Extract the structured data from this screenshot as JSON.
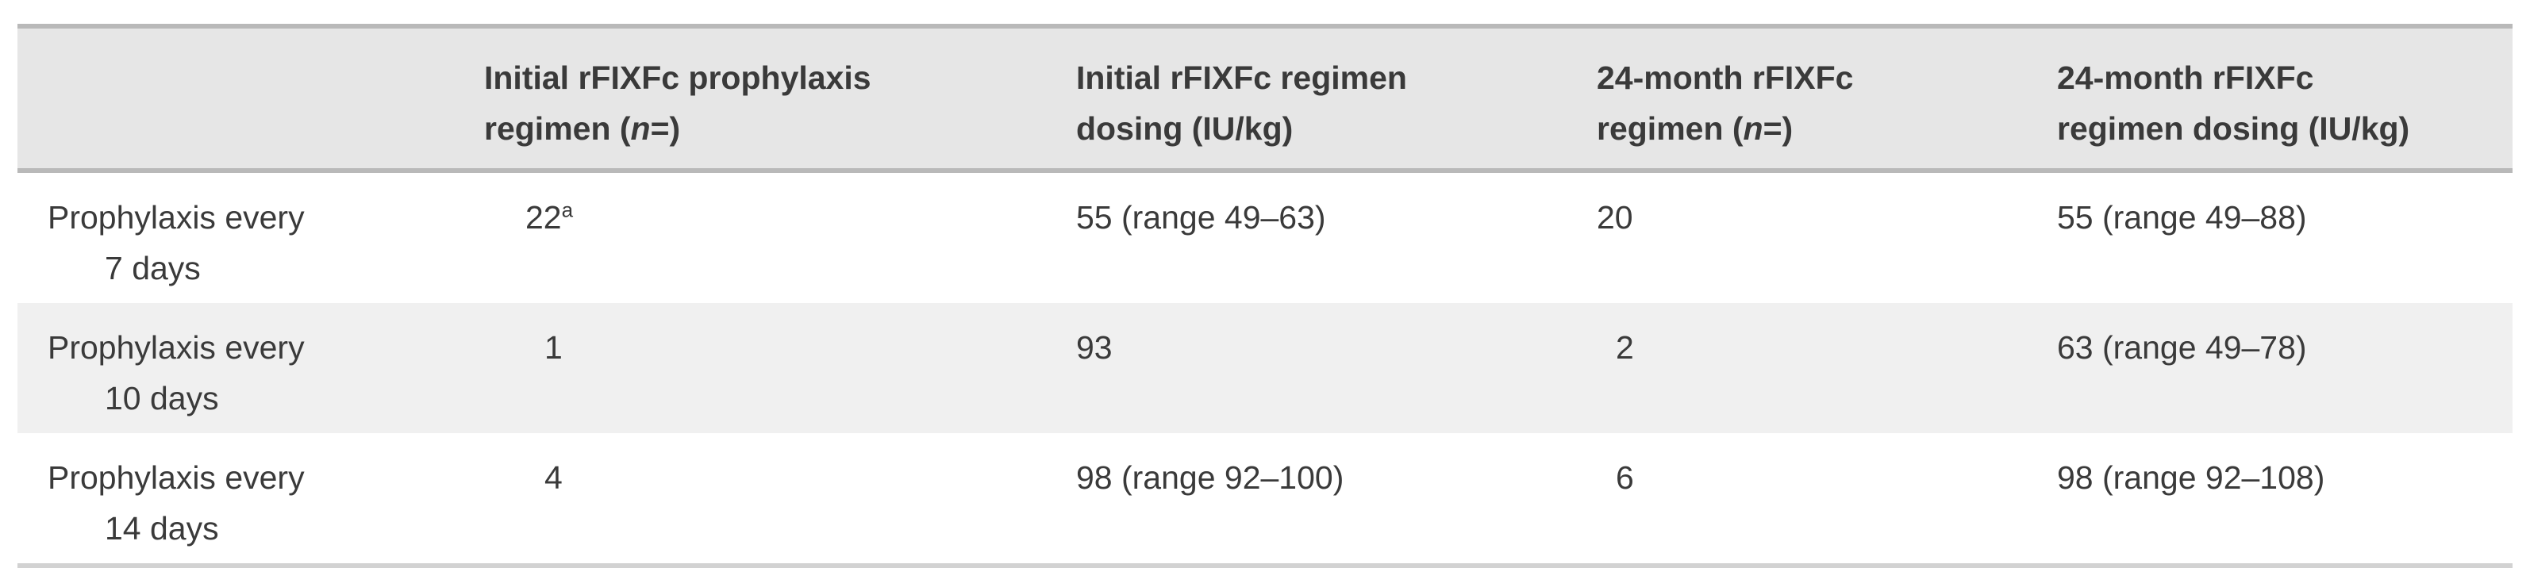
{
  "table": {
    "headers": [
      "",
      {
        "line1": "Initial rFIXFc prophylaxis",
        "line2_pre": "regimen (",
        "n": "n",
        "line2_post": "=)"
      },
      {
        "line1": "Initial rFIXFc regimen",
        "line2": "dosing (IU/kg)"
      },
      {
        "line1": "24-month rFIXFc",
        "line2_pre": "regimen (",
        "n": "n",
        "line2_post": "=)"
      },
      {
        "line1": "24-month rFIXFc",
        "line2": "regimen dosing (IU/kg)"
      }
    ],
    "rows": [
      {
        "label_line1": "Prophylaxis every",
        "label_line2": "7 days",
        "initial_n": "22",
        "initial_n_footnote": "a",
        "initial_dosing": "55 (range 49–63)",
        "month24_n": "20",
        "month24_dosing": "55 (range 49–88)"
      },
      {
        "label_line1": "Prophylaxis every",
        "label_line2": "10 days",
        "initial_n": "1",
        "initial_dosing": "93",
        "month24_n": "2",
        "month24_dosing": "63 (range 49–78)"
      },
      {
        "label_line1": "Prophylaxis every",
        "label_line2": "14 days",
        "initial_n": "4",
        "initial_dosing": "98 (range 92–100)",
        "month24_n": "6",
        "month24_dosing": "98 (range 92–108)"
      }
    ]
  }
}
